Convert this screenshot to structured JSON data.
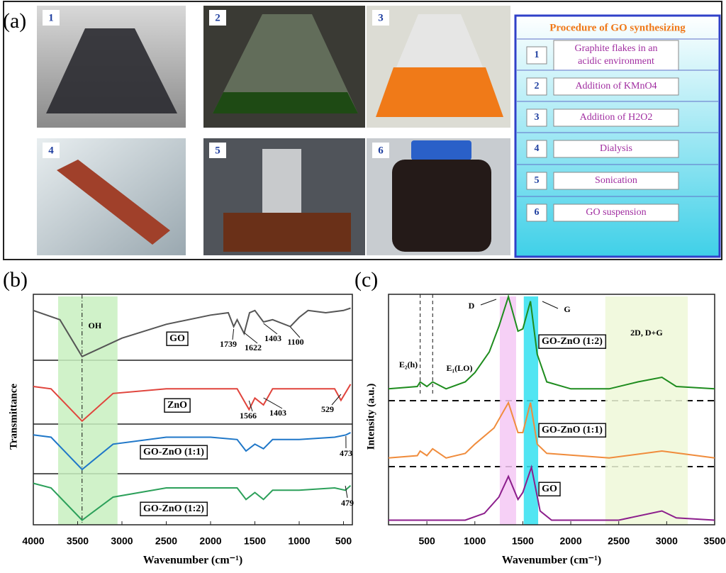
{
  "panel_a": {
    "label": "(a)",
    "photos": [
      1,
      2,
      3,
      4,
      5,
      6
    ],
    "procedure": {
      "title": "Procedure of GO synthesizing",
      "steps": [
        {
          "number": 1,
          "text": [
            "Graphite flakes in an",
            "acidic environment"
          ]
        },
        {
          "number": 2,
          "text": [
            "Addition of KMnO4"
          ]
        },
        {
          "number": 3,
          "text": [
            "Addition of H2O2"
          ]
        },
        {
          "number": 4,
          "text": [
            "Dialysis"
          ]
        },
        {
          "number": 5,
          "text": [
            "Sonication"
          ]
        },
        {
          "number": 6,
          "text": [
            "GO suspension"
          ]
        }
      ]
    }
  },
  "chart_data": [
    {
      "type": "line",
      "label": "(b)",
      "xlabel": "Wavenumber (cm⁻¹)",
      "ylabel": "Transmittance",
      "xlim": [
        4000,
        400
      ],
      "xticks": [
        4000,
        3500,
        3000,
        2500,
        2000,
        1500,
        1000,
        500
      ],
      "ylim": [
        0,
        100
      ],
      "band": {
        "x": [
          3720,
          3050
        ],
        "color": "#c8f0c0",
        "label": "OH"
      },
      "ref_line": 3450,
      "series": [
        {
          "name": "GO",
          "color": "#555555",
          "x": [
            4000,
            3700,
            3450,
            3000,
            2500,
            2000,
            1800,
            1739,
            1700,
            1622,
            1560,
            1500,
            1403,
            1300,
            1100,
            1000,
            900,
            700,
            500,
            420
          ],
          "values": [
            93,
            89,
            73,
            81,
            87,
            91,
            92,
            86,
            89,
            83,
            92,
            93,
            88,
            89,
            86,
            90,
            93,
            92,
            93,
            94
          ],
          "peaks": [
            1739,
            1622,
            1403,
            1100
          ]
        },
        {
          "name": "ZnO",
          "color": "#e0443c",
          "x": [
            4000,
            3800,
            3450,
            3100,
            2500,
            2000,
            1700,
            1566,
            1500,
            1403,
            1300,
            1000,
            600,
            529,
            420
          ],
          "values": [
            60,
            59,
            45,
            57,
            59,
            59,
            59,
            50,
            55,
            52,
            59,
            59,
            59,
            54,
            61
          ],
          "peaks": [
            1566,
            1403,
            529
          ]
        },
        {
          "name": "GO-ZnO (1:1)",
          "color": "#1f77c8",
          "x": [
            4000,
            3800,
            3450,
            3100,
            2500,
            2000,
            1700,
            1600,
            1500,
            1403,
            1300,
            1000,
            600,
            473,
            420
          ],
          "values": [
            39,
            38,
            24,
            35,
            38,
            38,
            37,
            32,
            35,
            33,
            37,
            37,
            38,
            39,
            40
          ],
          "peaks": [
            473
          ]
        },
        {
          "name": "GO-ZnO (1:2)",
          "color": "#2ca05a",
          "x": [
            4000,
            3800,
            3450,
            3100,
            2500,
            2000,
            1700,
            1600,
            1500,
            1403,
            1300,
            1000,
            600,
            479,
            420
          ],
          "values": [
            18,
            16,
            2,
            12,
            16,
            16,
            16,
            11,
            14,
            11,
            15,
            15,
            16,
            15,
            17
          ],
          "peaks": [
            479
          ]
        }
      ]
    },
    {
      "type": "line",
      "label": "(c)",
      "xlabel": "Wavenumber (cm⁻¹)",
      "ylabel": "Intensity (a.u.)",
      "xlim": [
        100,
        3500
      ],
      "xticks": [
        500,
        1000,
        1500,
        2000,
        2500,
        3000,
        3500
      ],
      "ylim": [
        0,
        100
      ],
      "bands": [
        {
          "x": [
            1260,
            1430
          ],
          "color": "#f5c8f5"
        },
        {
          "x": [
            1510,
            1660
          ],
          "color": "#33e0f0"
        },
        {
          "x": [
            2360,
            3220
          ],
          "color": "#eef8d8",
          "label": "2D, D+G"
        }
      ],
      "ref_lines": [
        430,
        560
      ],
      "annotations": [
        "D",
        "G",
        "E₂(h)",
        "E₁(LO)"
      ],
      "series": [
        {
          "name": "GO-ZnO (1:2)",
          "color": "#1e8c1e",
          "x": [
            100,
            400,
            430,
            500,
            560,
            700,
            900,
            1000,
            1150,
            1250,
            1350,
            1450,
            1500,
            1580,
            1650,
            1750,
            2000,
            2400,
            2700,
            2950,
            3100,
            3500
          ],
          "values": [
            59,
            60,
            62,
            60,
            62,
            59,
            62,
            66,
            75,
            86,
            99,
            84,
            85,
            97,
            74,
            62,
            59,
            59,
            62,
            64,
            60,
            59
          ]
        },
        {
          "name": "GO-ZnO (1:1)",
          "color": "#f08c3c",
          "x": [
            100,
            400,
            430,
            500,
            560,
            700,
            900,
            1000,
            1200,
            1350,
            1450,
            1500,
            1580,
            1650,
            1750,
            2400,
            2950,
            3500
          ],
          "values": [
            29,
            30,
            32,
            30,
            33,
            29,
            31,
            35,
            42,
            53,
            40,
            40,
            53,
            35,
            31,
            29,
            32,
            29
          ]
        },
        {
          "name": "GO",
          "color": "#8c1e8c",
          "x": [
            100,
            900,
            1100,
            1250,
            1350,
            1450,
            1500,
            1590,
            1680,
            1800,
            2500,
            2950,
            3100,
            3500
          ],
          "values": [
            2,
            2,
            5,
            12,
            21,
            11,
            14,
            25,
            6,
            2,
            2,
            6,
            3,
            2
          ]
        }
      ]
    }
  ]
}
